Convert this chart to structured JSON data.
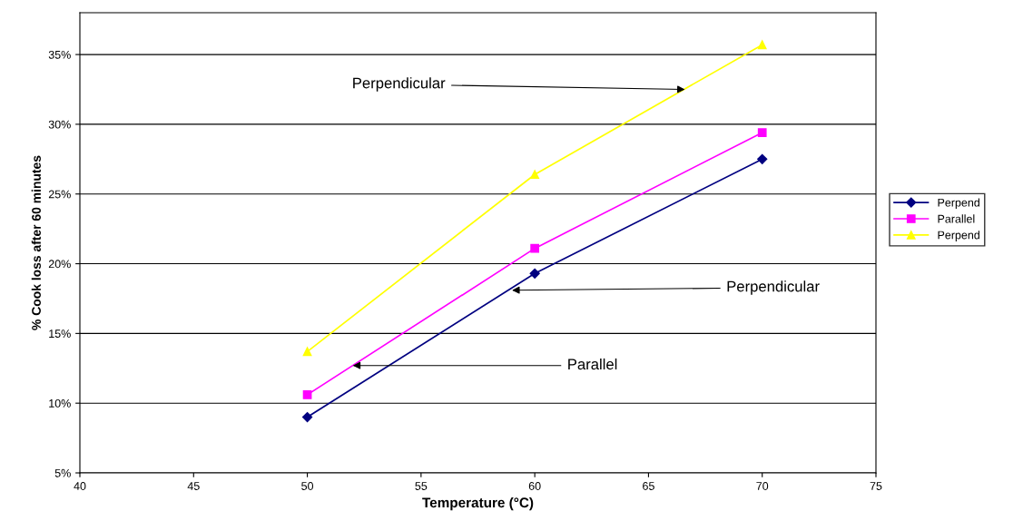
{
  "chart_data": {
    "type": "line",
    "xlabel": "Temperature (°C)",
    "ylabel": "% Cook loss after 60 minutes",
    "x": [
      50,
      60,
      70
    ],
    "series": [
      {
        "name": "Perpend",
        "color": "#000080",
        "marker": "diamond",
        "values": [
          9.0,
          19.3,
          27.5
        ]
      },
      {
        "name": "Parallel",
        "color": "#ff00ff",
        "marker": "square",
        "values": [
          10.6,
          21.1,
          29.4
        ]
      },
      {
        "name": "Perpend",
        "color": "#ffff00",
        "marker": "triangle",
        "values": [
          13.7,
          26.4,
          35.7
        ]
      }
    ],
    "xlim": [
      40,
      75
    ],
    "xticks": [
      40,
      45,
      50,
      55,
      60,
      65,
      70,
      75
    ],
    "ylim": [
      5,
      38
    ],
    "yticks": [
      {
        "value": 5,
        "label": "5%"
      },
      {
        "value": 10,
        "label": "10%"
      },
      {
        "value": 15,
        "label": "15%"
      },
      {
        "value": 20,
        "label": "20%"
      },
      {
        "value": 25,
        "label": "25%"
      },
      {
        "value": 30,
        "label": "30%"
      },
      {
        "value": 35,
        "label": "35%"
      }
    ],
    "grid": "y",
    "legend": "right",
    "line_style": "solid",
    "annotations": [
      {
        "text": "Perpendicular",
        "x": 66.6,
        "y": 32.5
      },
      {
        "text": "Perpendicular",
        "x": 59,
        "y": 18.1
      },
      {
        "text": "Parallel",
        "x": 52,
        "y": 12.7
      }
    ]
  }
}
